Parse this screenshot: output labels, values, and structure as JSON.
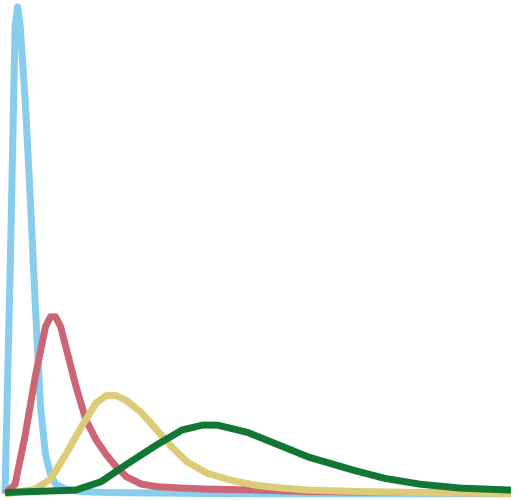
{
  "chart_data": {
    "type": "line",
    "grid": false,
    "xlim": [
      0,
      100
    ],
    "ylim": [
      0,
      100
    ],
    "series": [
      {
        "color": "#88ccee",
        "x": [
          0,
          1,
          2,
          2.5,
          3,
          4,
          5,
          6,
          7,
          8,
          9,
          10,
          12,
          15,
          20,
          30,
          40,
          60,
          80,
          100
        ],
        "y": [
          0,
          45,
          95,
          99,
          95,
          80,
          60,
          38,
          18,
          8,
          4,
          2,
          1,
          0.5,
          0.3,
          0.2,
          0.1,
          0.05,
          0.05,
          0.05
        ]
      },
      {
        "color": "#cc6677",
        "x": [
          0,
          2,
          4,
          6,
          8,
          9,
          10,
          11,
          12,
          14,
          16,
          18,
          20,
          22,
          24,
          27,
          30,
          35,
          40,
          50,
          60,
          80,
          100
        ],
        "y": [
          0,
          2,
          12,
          24,
          34,
          36,
          36,
          34,
          30,
          22,
          15,
          11,
          8,
          5.5,
          3.5,
          2,
          1.5,
          1.2,
          1,
          0.8,
          0.5,
          0.3,
          0.2
        ]
      },
      {
        "color": "#ddcc77",
        "x": [
          0,
          3,
          6,
          9,
          12,
          15,
          18,
          20,
          22,
          24,
          27,
          30,
          33,
          36,
          40,
          45,
          50,
          55,
          60,
          70,
          80,
          90,
          100
        ],
        "y": [
          0,
          0.5,
          1,
          3,
          8,
          13.5,
          18.5,
          20,
          20,
          19,
          16.5,
          13,
          9.5,
          6.5,
          4.2,
          2.7,
          1.7,
          1.2,
          0.8,
          0.5,
          0.3,
          0.2,
          0.1
        ]
      },
      {
        "color": "#117733",
        "x": [
          0,
          6,
          14,
          19,
          24,
          30,
          35,
          39,
          42,
          48,
          54,
          60,
          69,
          75,
          82,
          90,
          100
        ],
        "y": [
          0.3,
          0.5,
          0.8,
          2.5,
          6,
          10,
          13,
          14,
          14,
          12.5,
          10,
          7.5,
          4.8,
          3.2,
          2,
          1.2,
          0.8
        ]
      }
    ]
  }
}
